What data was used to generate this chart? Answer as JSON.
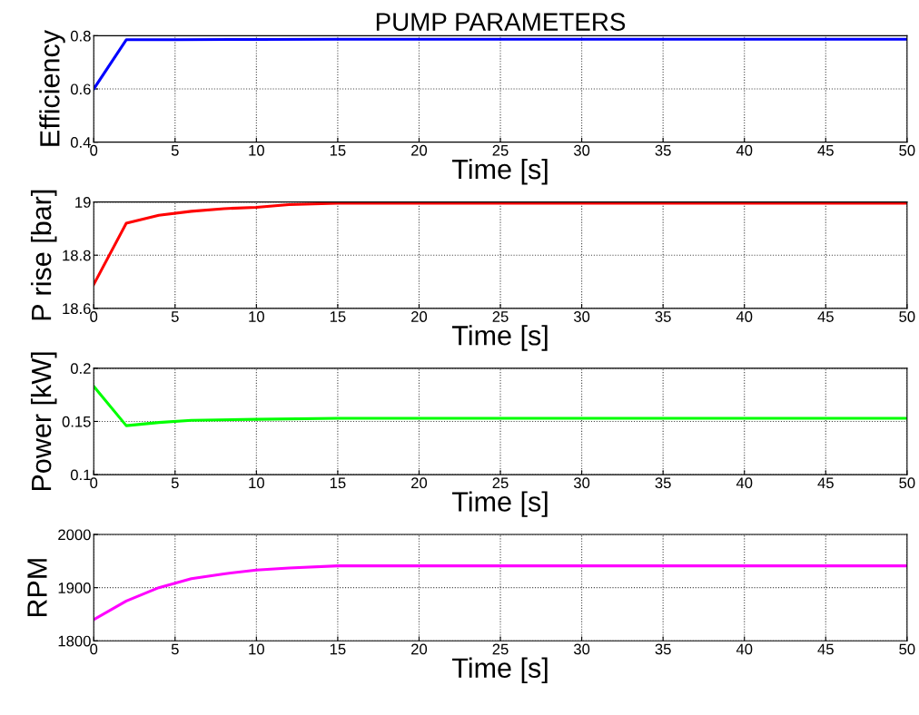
{
  "chart_data": [
    {
      "type": "line",
      "title": "PUMP PARAMETERS",
      "xlabel": "Time [s]",
      "ylabel": "Efficiency",
      "xlim": [
        0,
        50
      ],
      "xticks": [
        0,
        5,
        10,
        15,
        20,
        25,
        30,
        35,
        40,
        45,
        50
      ],
      "ylim": [
        0.4,
        0.8
      ],
      "yticks": [
        0.4,
        0.6,
        0.8
      ],
      "grid": true,
      "series": [
        {
          "color": "#0000ff",
          "x": [
            0,
            2,
            5,
            10,
            15,
            50
          ],
          "values": [
            0.6,
            0.785,
            0.785,
            0.786,
            0.787,
            0.787
          ]
        }
      ]
    },
    {
      "type": "line",
      "xlabel": "Time [s]",
      "ylabel": "P rise [bar]",
      "xlim": [
        0,
        50
      ],
      "xticks": [
        0,
        5,
        10,
        15,
        20,
        25,
        30,
        35,
        40,
        45,
        50
      ],
      "ylim": [
        18.6,
        19
      ],
      "yticks": [
        18.6,
        18.8,
        19
      ],
      "grid": true,
      "series": [
        {
          "color": "#ff0000",
          "x": [
            0,
            2,
            4,
            6,
            8,
            10,
            12,
            15,
            50
          ],
          "values": [
            18.69,
            18.92,
            18.95,
            18.965,
            18.975,
            18.98,
            18.99,
            18.995,
            18.995
          ]
        }
      ]
    },
    {
      "type": "line",
      "xlabel": "Time [s]",
      "ylabel": "Power [kW]",
      "xlim": [
        0,
        50
      ],
      "xticks": [
        0,
        5,
        10,
        15,
        20,
        25,
        30,
        35,
        40,
        45,
        50
      ],
      "ylim": [
        0.1,
        0.2
      ],
      "yticks": [
        0.1,
        0.15,
        0.2
      ],
      "grid": true,
      "series": [
        {
          "color": "#00ff00",
          "x": [
            0,
            2,
            4,
            6,
            10,
            15,
            50
          ],
          "values": [
            0.183,
            0.146,
            0.149,
            0.151,
            0.152,
            0.153,
            0.153
          ]
        }
      ]
    },
    {
      "type": "line",
      "xlabel": "Time [s]",
      "ylabel": "RPM",
      "xlim": [
        0,
        50
      ],
      "xticks": [
        0,
        5,
        10,
        15,
        20,
        25,
        30,
        35,
        40,
        45,
        50
      ],
      "ylim": [
        1800,
        2000
      ],
      "yticks": [
        1800,
        1900,
        2000
      ],
      "grid": true,
      "series": [
        {
          "color": "#ff00ff",
          "x": [
            0,
            2,
            4,
            6,
            8,
            10,
            12,
            15,
            50
          ],
          "values": [
            1840,
            1875,
            1900,
            1917,
            1926,
            1933,
            1937,
            1941,
            1941
          ]
        }
      ]
    }
  ]
}
